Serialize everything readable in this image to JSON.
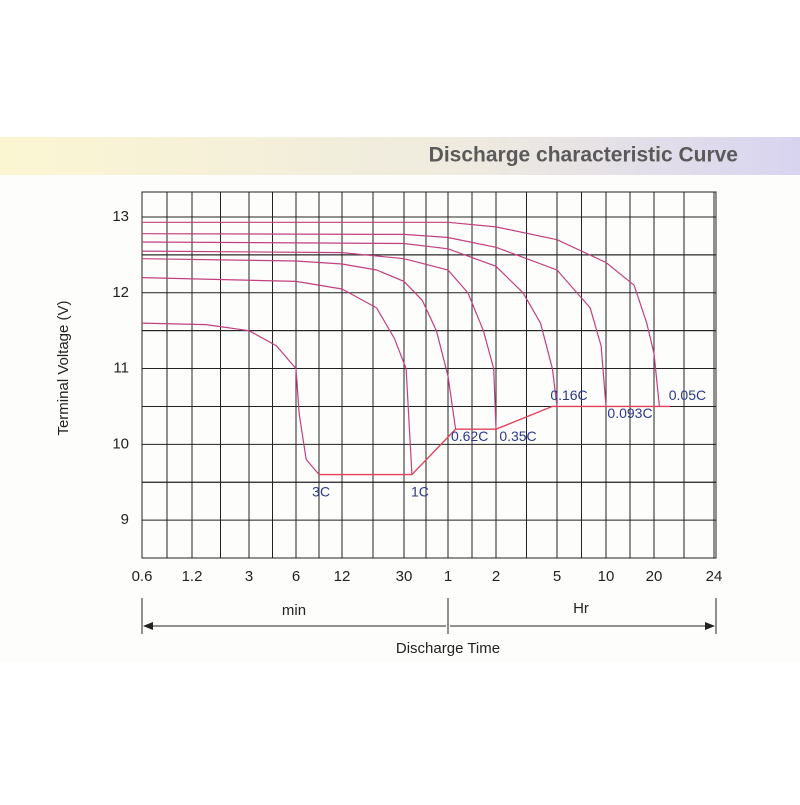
{
  "chart_data": {
    "type": "line",
    "title": "Discharge characteristic Curve",
    "ylabel": "Terminal Voltage  (V)",
    "xlabel": "Discharge Time",
    "annotations": [
      "min",
      "Hr"
    ],
    "log_x": true,
    "grid": true,
    "xlim": [
      0.6,
      1440
    ],
    "ylim": [
      8.5,
      13.33
    ],
    "xticks": [
      0.6,
      1.2,
      3,
      6,
      12,
      30,
      {
        "value": 60,
        "label": "1"
      },
      {
        "value": 120,
        "label": "2"
      },
      {
        "value": 300,
        "label": "5"
      },
      {
        "value": 600,
        "label": "10"
      },
      {
        "value": 1200,
        "label": "20"
      },
      {
        "value": 1440,
        "label": "24"
      }
    ],
    "yticks": [
      9,
      10,
      11,
      12,
      13
    ],
    "series": [
      {
        "name": "3C",
        "color": "#c2407e",
        "x": [
          0.6,
          1.5,
          3,
          4.5,
          6,
          6.3,
          7,
          8.5
        ],
        "values": [
          11.6,
          11.58,
          11.5,
          11.3,
          11.0,
          10.4,
          9.8,
          9.6
        ]
      },
      {
        "name": "1C",
        "color": "#c2407e",
        "x": [
          0.6,
          6,
          12,
          20,
          26,
          31,
          34
        ],
        "values": [
          12.2,
          12.15,
          12.05,
          11.8,
          11.4,
          11.0,
          9.6
        ]
      },
      {
        "name": "0.62C",
        "color": "#c2407e",
        "x": [
          0.6,
          6,
          12,
          20,
          30,
          40,
          50,
          60,
          67
        ],
        "values": [
          12.45,
          12.42,
          12.38,
          12.3,
          12.15,
          11.9,
          11.5,
          10.9,
          10.2
        ]
      },
      {
        "name": "0.35C",
        "color": "#c2407e",
        "x": [
          0.6,
          12,
          30,
          60,
          80,
          100,
          116,
          120
        ],
        "values": [
          12.55,
          12.53,
          12.45,
          12.3,
          12.0,
          11.5,
          11.0,
          10.2
        ]
      },
      {
        "name": "0.16C",
        "color": "#c2407e",
        "x": [
          0.6,
          30,
          60,
          120,
          180,
          234,
          280,
          300
        ],
        "values": [
          12.67,
          12.65,
          12.58,
          12.35,
          12.0,
          11.6,
          11.0,
          10.5
        ]
      },
      {
        "name": "0.093C",
        "color": "#c2407e",
        "x": [
          0.6,
          30,
          60,
          120,
          300,
          480,
          560,
          600
        ],
        "values": [
          12.78,
          12.77,
          12.73,
          12.6,
          12.3,
          11.8,
          11.3,
          10.5
        ]
      },
      {
        "name": "0.05C",
        "color": "#c2407e",
        "x": [
          0.6,
          60,
          120,
          300,
          600,
          900,
          1080,
          1200,
          1220
        ],
        "values": [
          12.93,
          12.93,
          12.87,
          12.7,
          12.4,
          12.1,
          11.6,
          11.2,
          10.5
        ]
      }
    ],
    "cutoff_line": {
      "color": "#e2405a",
      "x": [
        8.5,
        34,
        67,
        120,
        280,
        1260
      ],
      "values": [
        9.6,
        9.6,
        10.2,
        10.2,
        10.5,
        10.5
      ]
    }
  }
}
